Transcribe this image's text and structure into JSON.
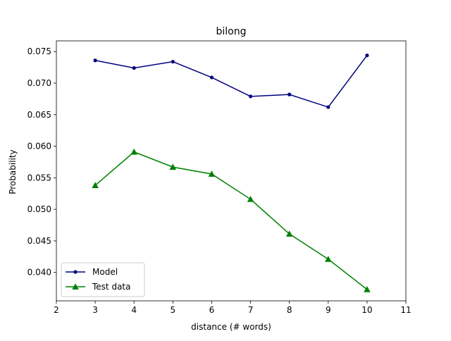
{
  "chart_data": {
    "type": "line",
    "title": "bilong",
    "xlabel": "distance (# words)",
    "ylabel": "Probability",
    "xlim": [
      2,
      11
    ],
    "ylim": [
      0.0355,
      0.0767
    ],
    "xticks": [
      2,
      3,
      4,
      5,
      6,
      7,
      8,
      9,
      10,
      11
    ],
    "yticks": [
      0.04,
      0.045,
      0.05,
      0.055,
      0.06,
      0.065,
      0.07,
      0.075
    ],
    "xtick_labels": [
      "2",
      "3",
      "4",
      "5",
      "6",
      "7",
      "8",
      "9",
      "10",
      "11"
    ],
    "ytick_labels": [
      "0.040",
      "0.045",
      "0.050",
      "0.055",
      "0.060",
      "0.065",
      "0.070",
      "0.075"
    ],
    "grid": false,
    "legend_position": "lower-left",
    "x": [
      3,
      4,
      5,
      6,
      7,
      8,
      9,
      10
    ],
    "series": [
      {
        "name": "Model",
        "color": "#000080",
        "marker": "circle",
        "values": [
          0.0736,
          0.0724,
          0.0734,
          0.0709,
          0.0679,
          0.0682,
          0.0662,
          0.0744
        ]
      },
      {
        "name": "Test data",
        "color": "#008000",
        "marker": "triangle",
        "values": [
          0.0538,
          0.0591,
          0.0567,
          0.0556,
          0.0516,
          0.0461,
          0.0421,
          0.0373
        ]
      }
    ]
  }
}
